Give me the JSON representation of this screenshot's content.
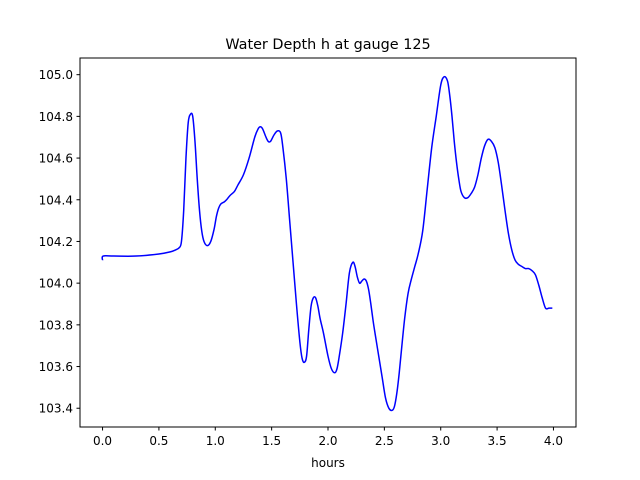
{
  "chart_data": {
    "type": "line",
    "title": "Water Depth h at gauge 125",
    "xlabel": "hours",
    "ylabel": "",
    "xlim": [
      -0.2,
      4.2
    ],
    "ylim": [
      103.31,
      105.08
    ],
    "xticks": [
      0.0,
      0.5,
      1.0,
      1.5,
      2.0,
      2.5,
      3.0,
      3.5,
      4.0
    ],
    "xtick_labels": [
      "0.0",
      "0.5",
      "1.0",
      "1.5",
      "2.0",
      "2.5",
      "3.0",
      "3.5",
      "4.0"
    ],
    "yticks": [
      103.4,
      103.6,
      103.8,
      104.0,
      104.2,
      104.4,
      104.6,
      104.8,
      105.0
    ],
    "ytick_labels": [
      "103.4",
      "103.6",
      "103.8",
      "104.0",
      "104.2",
      "104.4",
      "104.6",
      "104.8",
      "105.0"
    ],
    "grid": false,
    "series": [
      {
        "color": "#0000ff",
        "x": [
          0.0,
          0.005,
          0.1,
          0.3,
          0.5,
          0.6,
          0.65,
          0.68,
          0.7,
          0.72,
          0.74,
          0.76,
          0.78,
          0.8,
          0.82,
          0.84,
          0.86,
          0.88,
          0.9,
          0.93,
          0.96,
          0.99,
          1.01,
          1.03,
          1.05,
          1.08,
          1.1,
          1.13,
          1.17,
          1.2,
          1.25,
          1.3,
          1.35,
          1.38,
          1.4,
          1.42,
          1.45,
          1.47,
          1.49,
          1.52,
          1.55,
          1.58,
          1.6,
          1.63,
          1.66,
          1.69,
          1.72,
          1.75,
          1.77,
          1.79,
          1.81,
          1.83,
          1.85,
          1.87,
          1.89,
          1.91,
          1.93,
          1.96,
          2.0,
          2.03,
          2.06,
          2.08,
          2.1,
          2.13,
          2.16,
          2.19,
          2.22,
          2.24,
          2.26,
          2.28,
          2.3,
          2.32,
          2.34,
          2.36,
          2.38,
          2.4,
          2.42,
          2.45,
          2.48,
          2.51,
          2.54,
          2.57,
          2.59,
          2.61,
          2.63,
          2.65,
          2.68,
          2.71,
          2.74,
          2.77,
          2.8,
          2.84,
          2.88,
          2.92,
          2.96,
          3.0,
          3.03,
          3.06,
          3.08,
          3.1,
          3.12,
          3.14,
          3.16,
          3.18,
          3.21,
          3.24,
          3.27,
          3.3,
          3.33,
          3.36,
          3.39,
          3.42,
          3.45,
          3.48,
          3.51,
          3.54,
          3.57,
          3.6,
          3.63,
          3.66,
          3.69,
          3.72,
          3.75,
          3.78,
          3.81,
          3.84,
          3.87,
          3.9,
          3.93,
          3.96,
          3.99
        ],
        "values": [
          104.11,
          104.13,
          104.13,
          104.13,
          104.14,
          104.15,
          104.16,
          104.17,
          104.2,
          104.35,
          104.6,
          104.77,
          104.81,
          104.8,
          104.68,
          104.5,
          104.35,
          104.25,
          104.2,
          104.18,
          104.2,
          104.26,
          104.32,
          104.36,
          104.38,
          104.39,
          104.4,
          104.42,
          104.44,
          104.47,
          104.52,
          104.6,
          104.7,
          104.74,
          104.75,
          104.74,
          104.7,
          104.68,
          104.68,
          104.71,
          104.73,
          104.72,
          104.65,
          104.5,
          104.3,
          104.1,
          103.9,
          103.72,
          103.64,
          103.62,
          103.65,
          103.78,
          103.89,
          103.93,
          103.93,
          103.89,
          103.83,
          103.76,
          103.65,
          103.59,
          103.57,
          103.59,
          103.65,
          103.76,
          103.9,
          104.05,
          104.1,
          104.08,
          104.03,
          104.0,
          104.01,
          104.02,
          104.01,
          103.97,
          103.9,
          103.82,
          103.75,
          103.65,
          103.55,
          103.45,
          103.4,
          103.39,
          103.41,
          103.47,
          103.56,
          103.67,
          103.83,
          103.95,
          104.02,
          104.08,
          104.14,
          104.25,
          104.45,
          104.65,
          104.8,
          104.95,
          104.99,
          104.97,
          104.9,
          104.8,
          104.68,
          104.58,
          104.5,
          104.44,
          104.41,
          104.41,
          104.43,
          104.46,
          104.52,
          104.6,
          104.66,
          104.69,
          104.68,
          104.65,
          104.58,
          104.47,
          104.35,
          104.24,
          104.16,
          104.11,
          104.09,
          104.08,
          104.07,
          104.07,
          104.06,
          104.04,
          103.99,
          103.93,
          103.88,
          103.88,
          103.88
        ]
      }
    ]
  }
}
